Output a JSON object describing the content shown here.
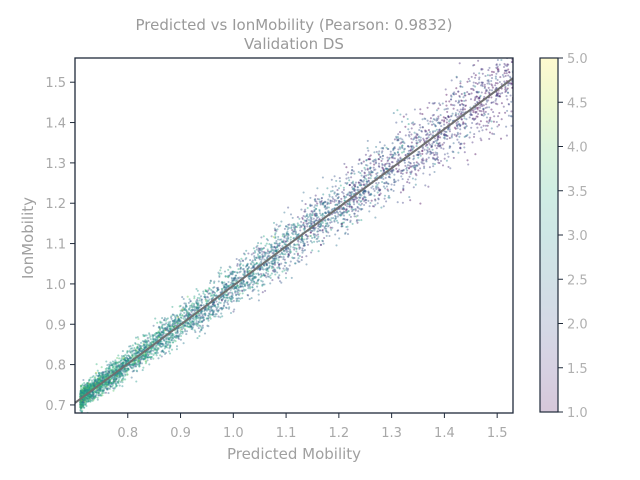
{
  "chart_data": {
    "type": "scatter",
    "title": "Predicted vs IonMobility (Pearson: 0.9832)",
    "subtitle": "Validation DS",
    "xlabel": "Predicted Mobility",
    "ylabel": "IonMobility",
    "xlim": [
      0.7,
      1.53
    ],
    "ylim": [
      0.68,
      1.56
    ],
    "xticks": [
      "0.8",
      "0.9",
      "1.0",
      "1.1",
      "1.2",
      "1.3",
      "1.4",
      "1.5"
    ],
    "yticks": [
      "0.7",
      "0.8",
      "0.9",
      "1.0",
      "1.1",
      "1.2",
      "1.3",
      "1.4",
      "1.5"
    ],
    "grid": false,
    "pearson": 0.9832,
    "reference_line": {
      "x": [
        0.7,
        1.53
      ],
      "y": [
        0.705,
        1.51
      ],
      "color": "#6f6f6f"
    },
    "colorbar": {
      "colormap": "viridis",
      "range": [
        1.0,
        5.0
      ],
      "ticks": [
        "1.0",
        "1.5",
        "2.0",
        "2.5",
        "3.0",
        "3.5",
        "4.0",
        "4.5",
        "5.0"
      ]
    },
    "series": [
      {
        "x": [
          0.72,
          0.75,
          0.78,
          0.8,
          0.82,
          0.85,
          0.88,
          0.9,
          0.93,
          0.95,
          0.98,
          1.0,
          1.03,
          1.05,
          1.08,
          1.1,
          1.13,
          1.15,
          1.18,
          1.2,
          1.25,
          1.3,
          1.35,
          1.4,
          1.45,
          1.5
        ],
        "y": [
          0.73,
          0.76,
          0.78,
          0.81,
          0.83,
          0.85,
          0.88,
          0.9,
          0.92,
          0.95,
          0.97,
          1.0,
          1.02,
          1.04,
          1.07,
          1.09,
          1.11,
          1.14,
          1.16,
          1.19,
          1.23,
          1.28,
          1.32,
          1.37,
          1.42,
          1.47
        ],
        "color": [
          3.2,
          3.0,
          2.9,
          3.1,
          2.8,
          3.3,
          2.7,
          3.0,
          2.6,
          2.9,
          2.5,
          2.4,
          2.6,
          2.3,
          2.2,
          2.1,
          2.2,
          2.0,
          2.1,
          1.9,
          2.0,
          1.8,
          1.9,
          1.7,
          1.8,
          1.6
        ]
      }
    ]
  }
}
